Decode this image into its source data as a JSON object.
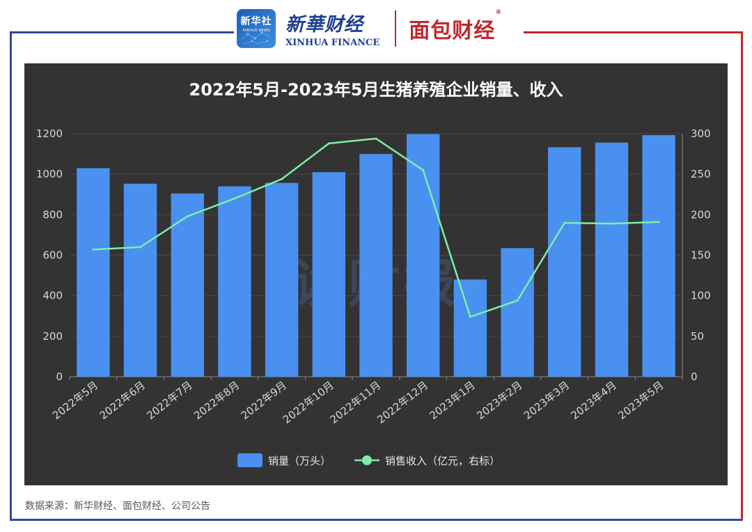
{
  "header": {
    "xinhua_emblem_zh": "新华社",
    "xinhua_emblem_en": "XINHUA NEWS",
    "xinhua_name_zh": "新華财经",
    "xinhua_name_en": "XINHUA FINANCE",
    "mianbao_name": "面包财经",
    "registered_mark": "®"
  },
  "colors": {
    "frame_blue": "#2f4a9c",
    "frame_red": "#c0282d",
    "panel_bg": "#333333",
    "bar": "#4a90f0",
    "line": "#7cf0a8",
    "title": "#ffffff",
    "axis_text": "#d8d8d8",
    "grid": "#4a4a4a",
    "watermark": "#3d4656"
  },
  "chart_data": {
    "type": "bar",
    "title": "2022年5月-2023年5月生猪养殖企业销量、收入",
    "categories": [
      "2022年5月",
      "2022年6月",
      "2022年7月",
      "2022年8月",
      "2022年9月",
      "2022年10月",
      "2022年11月",
      "2022年12月",
      "2023年1月",
      "2023年2月",
      "2023年3月",
      "2023年4月",
      "2023年5月"
    ],
    "series": [
      {
        "name": "销量（万头）",
        "kind": "bar",
        "axis": "left",
        "values": [
          1030,
          953,
          905,
          940,
          957,
          1010,
          1100,
          1198,
          480,
          635,
          1133,
          1156,
          1193
        ]
      },
      {
        "name": "销售收入（亿元，右标）",
        "kind": "line",
        "axis": "right",
        "values": [
          157,
          160,
          198,
          220,
          244,
          288,
          294,
          255,
          74,
          94,
          190,
          189,
          191
        ]
      }
    ],
    "y_left": {
      "ylim": [
        0,
        1200
      ],
      "ticks": [
        "0",
        "200",
        "400",
        "600",
        "800",
        "1000",
        "1200"
      ]
    },
    "y_right": {
      "ylim": [
        0,
        300
      ],
      "ticks": [
        "0",
        "50",
        "100",
        "150",
        "200",
        "250",
        "300"
      ]
    },
    "grid": true,
    "legend_position": "bottom-center",
    "watermark": "读财报"
  },
  "footer": {
    "source": "数据来源：新华财经、面包财经、公司公告"
  }
}
